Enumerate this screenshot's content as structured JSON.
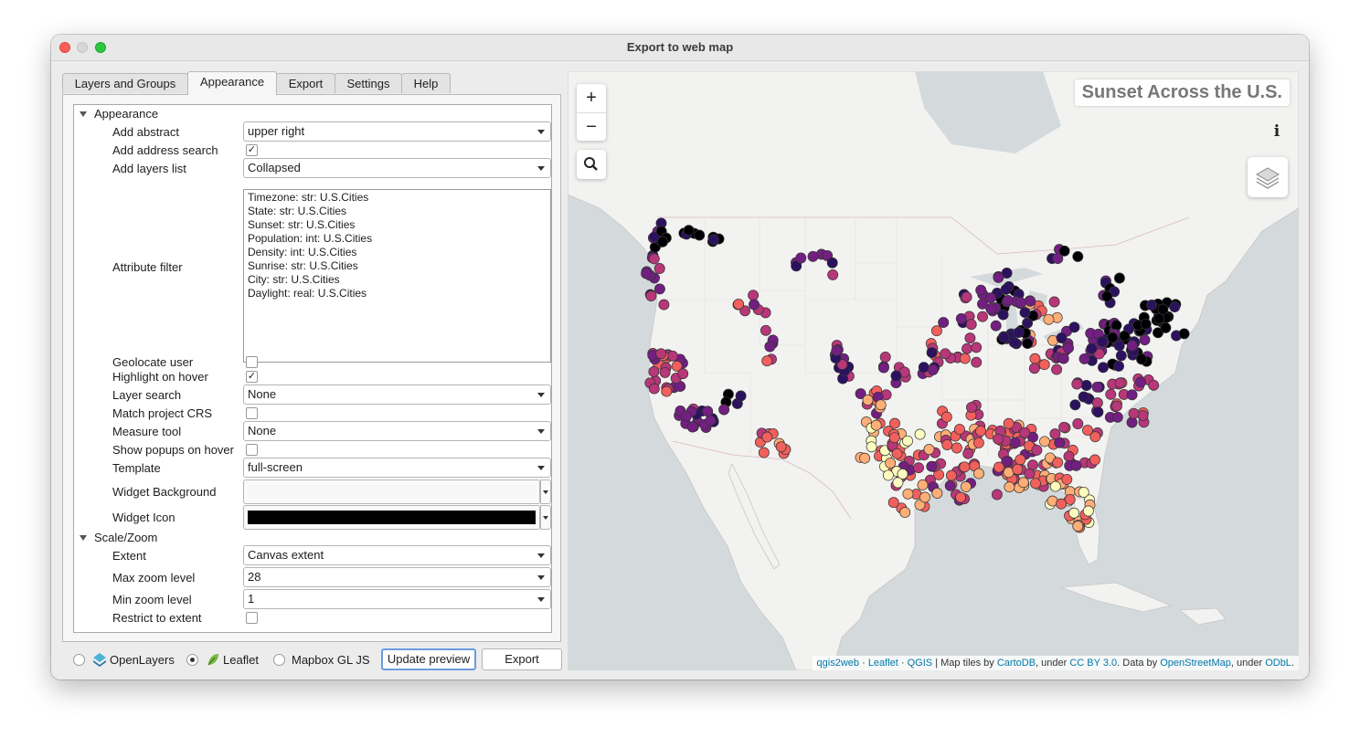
{
  "window": {
    "title": "Export to web map"
  },
  "tabs": [
    "Layers and Groups",
    "Appearance",
    "Export",
    "Settings",
    "Help"
  ],
  "appearance": {
    "group_label": "Appearance",
    "add_abstract": {
      "label": "Add abstract",
      "value": "upper right"
    },
    "add_address_search": {
      "label": "Add address search",
      "checked": true
    },
    "add_layers_list": {
      "label": "Add layers list",
      "value": "Collapsed"
    },
    "attribute_filter": {
      "label": "Attribute filter",
      "items": [
        "Timezone: str: U.S.Cities",
        "State: str: U.S.Cities",
        "Sunset: str: U.S.Cities",
        "Population: int: U.S.Cities",
        "Density: int: U.S.Cities",
        "Sunrise: str: U.S.Cities",
        "City: str: U.S.Cities",
        "Daylight: real: U.S.Cities"
      ]
    },
    "geolocate_user": {
      "label": "Geolocate user",
      "checked": false
    },
    "highlight_on_hover": {
      "label": "Highlight on hover",
      "checked": true
    },
    "layer_search": {
      "label": "Layer search",
      "value": "None"
    },
    "match_project_crs": {
      "label": "Match project CRS",
      "checked": false
    },
    "measure_tool": {
      "label": "Measure tool",
      "value": "None"
    },
    "show_popups_on_hover": {
      "label": "Show popups on hover",
      "checked": false
    },
    "template": {
      "label": "Template",
      "value": "full-screen"
    },
    "widget_background": {
      "label": "Widget Background",
      "color": "#f7f7f7"
    },
    "widget_icon": {
      "label": "Widget Icon",
      "color": "#000000"
    }
  },
  "scale_zoom": {
    "group_label": "Scale/Zoom",
    "extent": {
      "label": "Extent",
      "value": "Canvas extent"
    },
    "max_zoom": {
      "label": "Max zoom level",
      "value": "28"
    },
    "min_zoom": {
      "label": "Min zoom level",
      "value": "1"
    },
    "restrict_to_extent": {
      "label": "Restrict to extent",
      "checked": false
    }
  },
  "bottom": {
    "options": [
      {
        "label": "OpenLayers",
        "selected": false,
        "icon": "openlayers-icon"
      },
      {
        "label": "Leaflet",
        "selected": true,
        "icon": "leaflet-icon"
      },
      {
        "label": "Mapbox GL JS",
        "selected": false
      }
    ],
    "update_preview": "Update preview",
    "export": "Export"
  },
  "map": {
    "title": "Sunset Across the U.S.",
    "zoom_in": "+",
    "zoom_out": "−",
    "info_icon": "i",
    "attribution": {
      "qgis2web": "qgis2web",
      "sep1": " · ",
      "leaflet": "Leaflet",
      "sep2": " · ",
      "qgis": "QGIS",
      "text1": " | Map tiles by ",
      "cartodb": "CartoDB",
      "text2": ", under ",
      "ccby": "CC BY 3.0",
      "text3": ". Data by ",
      "osm": "OpenStreetMap",
      "text4": ", under ",
      "odbl": "ODbL",
      "text5": "."
    },
    "colors": {
      "water": "#d4dadc",
      "land": "#f2f2f0",
      "ramp": [
        "#000004",
        "#2c115f",
        "#721f81",
        "#b73779",
        "#f1605d",
        "#feae77",
        "#fcfdbf"
      ]
    }
  }
}
